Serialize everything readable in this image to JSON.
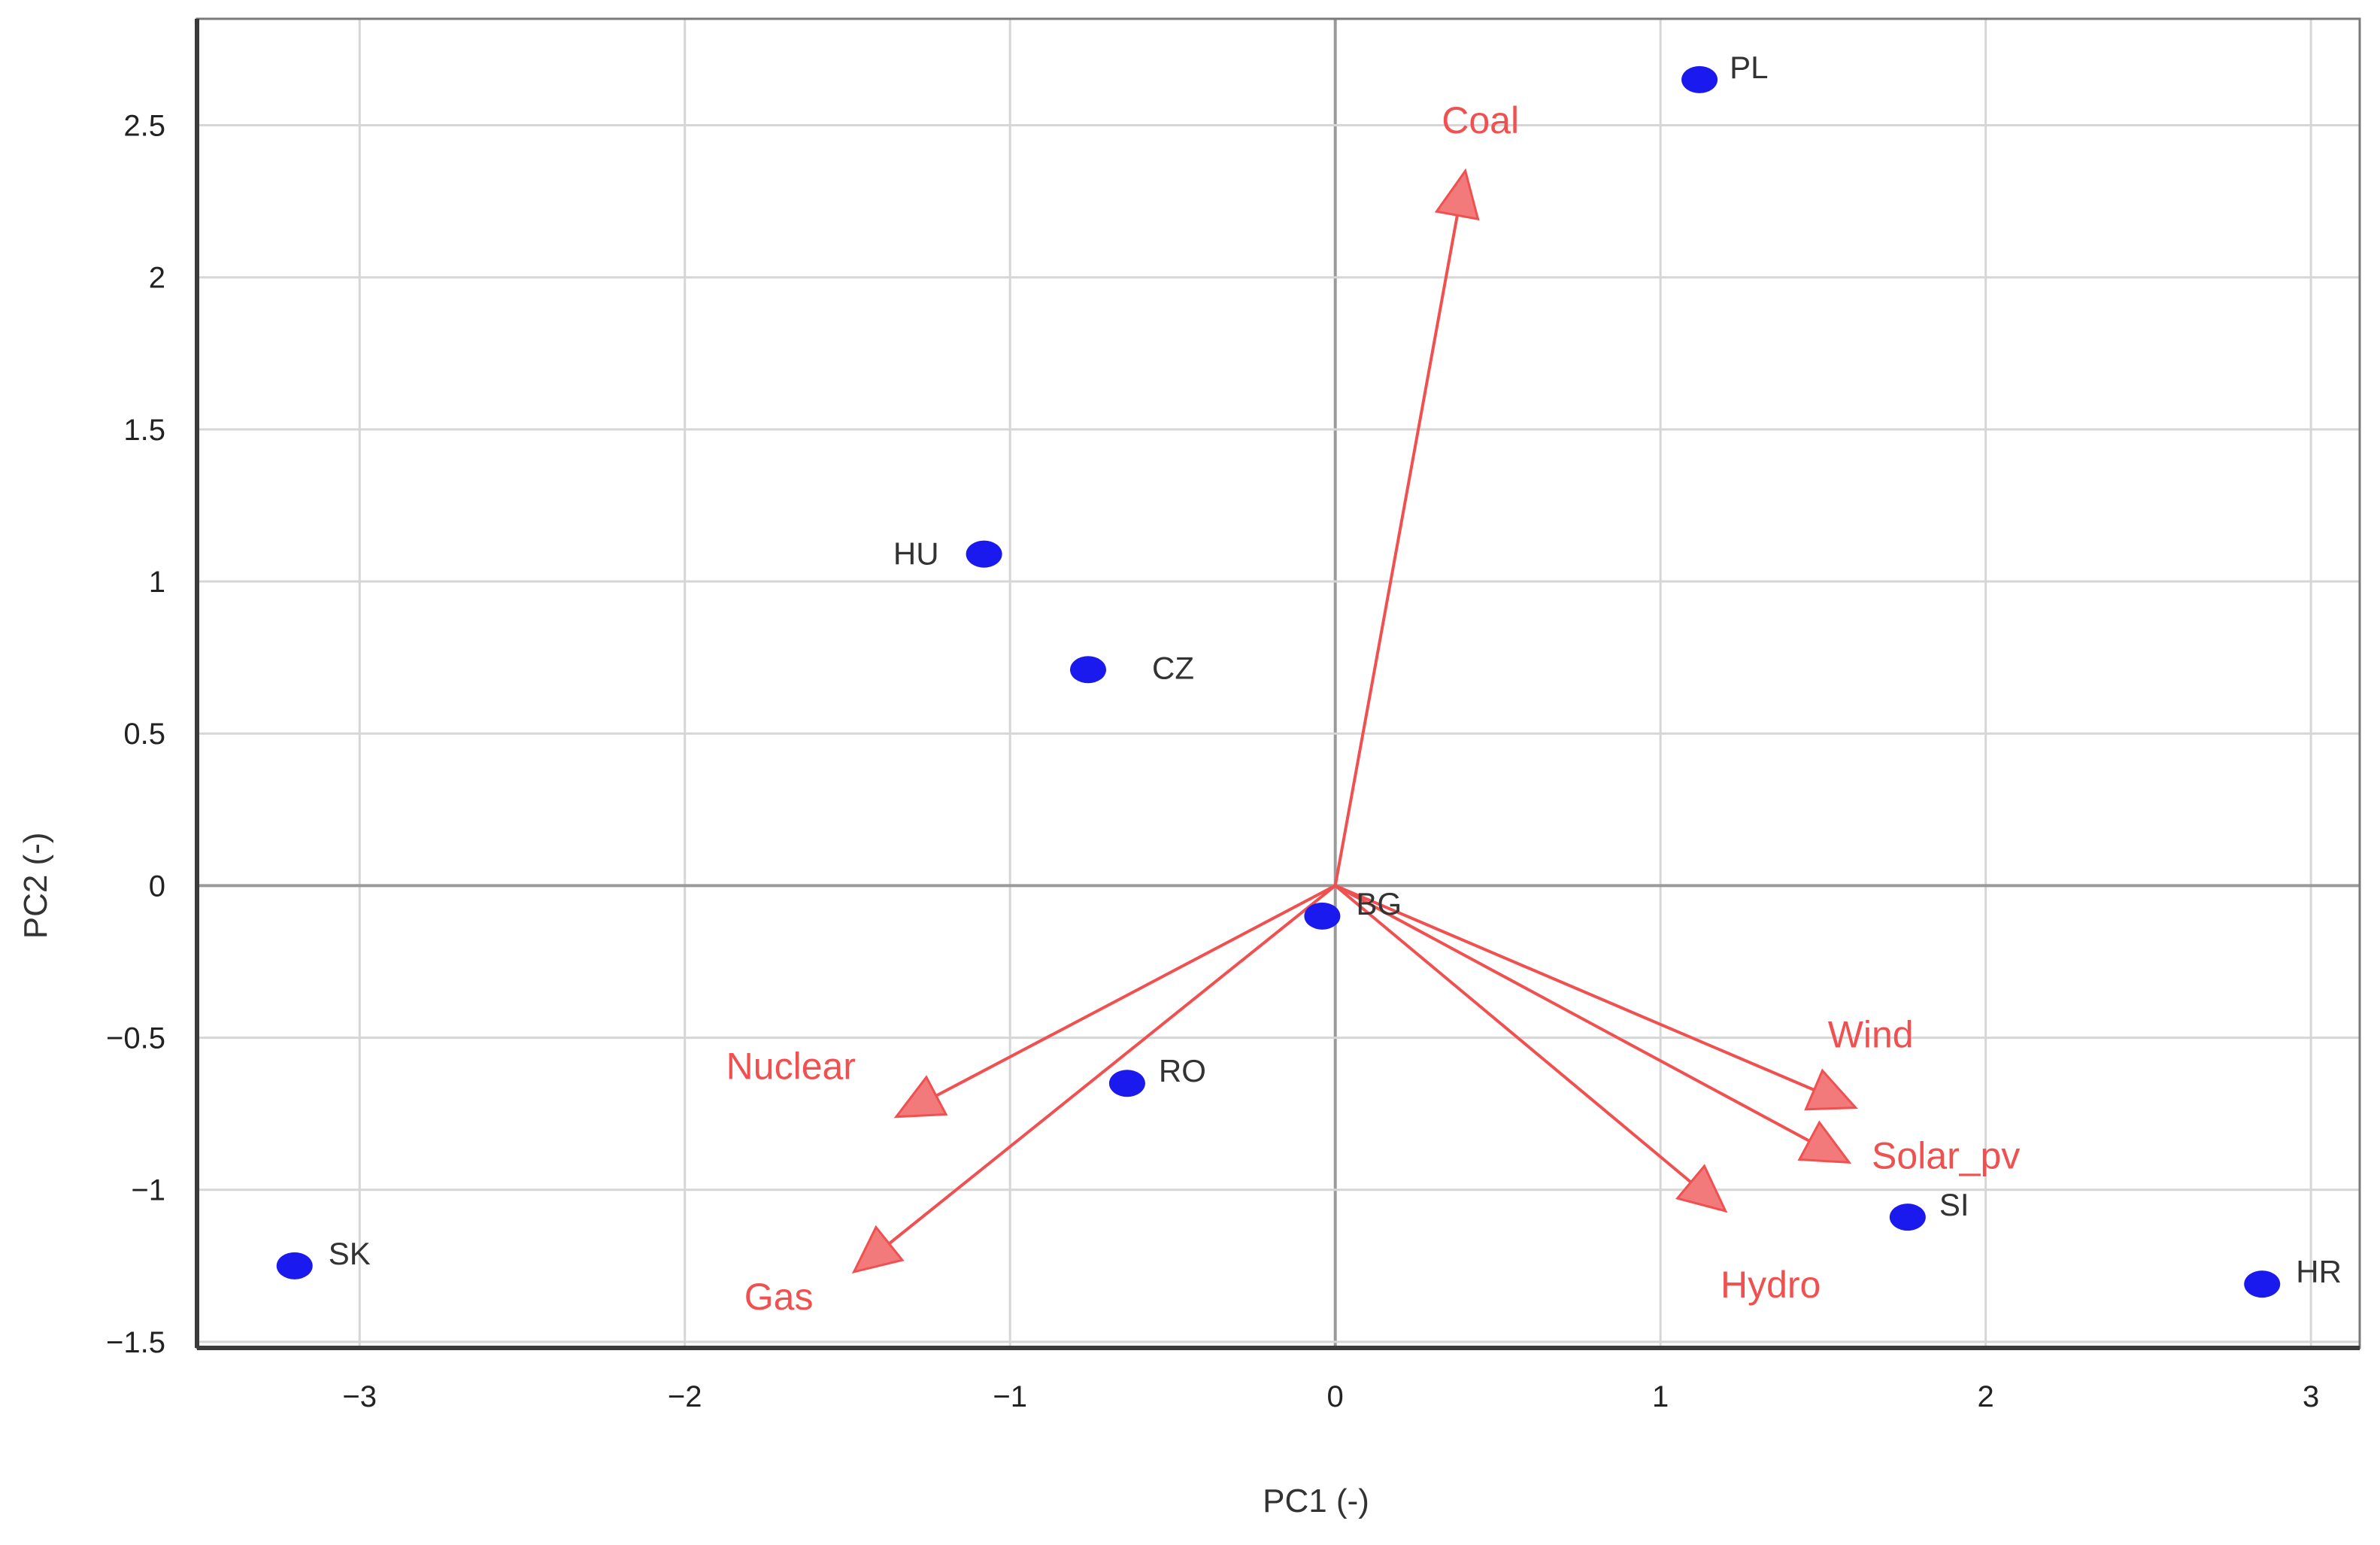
{
  "chart_data": {
    "type": "scatter",
    "title": "",
    "xlabel": "PC1 (-)",
    "ylabel": "PC2 (-)",
    "xlim": [
      -3.5,
      3.15
    ],
    "ylim": [
      -1.52,
      2.85
    ],
    "grid": true,
    "x_ticks": [
      -3,
      -2,
      -1,
      0,
      1,
      2,
      3
    ],
    "x_tick_labels": [
      "−3",
      "−2",
      "−1",
      "0",
      "1",
      "2",
      "3"
    ],
    "y_ticks": [
      -1.5,
      -1,
      -0.5,
      0,
      0.5,
      1,
      1.5,
      2,
      2.5
    ],
    "y_tick_labels": [
      "−1.5",
      "−1",
      "−0.5",
      "0",
      "0.5",
      "1",
      "1.5",
      "2",
      "2.5"
    ],
    "point_color": "#1a1aee",
    "loading_color": "#f05050",
    "points": [
      {
        "label": "PL",
        "x": 1.12,
        "y": 2.65
      },
      {
        "label": "HU",
        "x": -1.08,
        "y": 1.09
      },
      {
        "label": "CZ",
        "x": -0.76,
        "y": 0.71
      },
      {
        "label": "BG",
        "x": -0.04,
        "y": -0.1
      },
      {
        "label": "RO",
        "x": -0.64,
        "y": -0.65
      },
      {
        "label": "SK",
        "x": -3.2,
        "y": -1.25
      },
      {
        "label": "SI",
        "x": 1.76,
        "y": -1.09
      },
      {
        "label": "HR",
        "x": 2.85,
        "y": -1.31
      }
    ],
    "loadings": [
      {
        "label": "Coal",
        "x": 0.4,
        "y": 2.35
      },
      {
        "label": "Nuclear",
        "x": -1.35,
        "y": -0.76
      },
      {
        "label": "Gas",
        "x": -1.48,
        "y": -1.27
      },
      {
        "label": "Wind",
        "x": 1.6,
        "y": -0.73
      },
      {
        "label": "Solar_pv",
        "x": 1.58,
        "y": -0.91
      },
      {
        "label": "Hydro",
        "x": 1.2,
        "y": -1.07
      }
    ]
  }
}
